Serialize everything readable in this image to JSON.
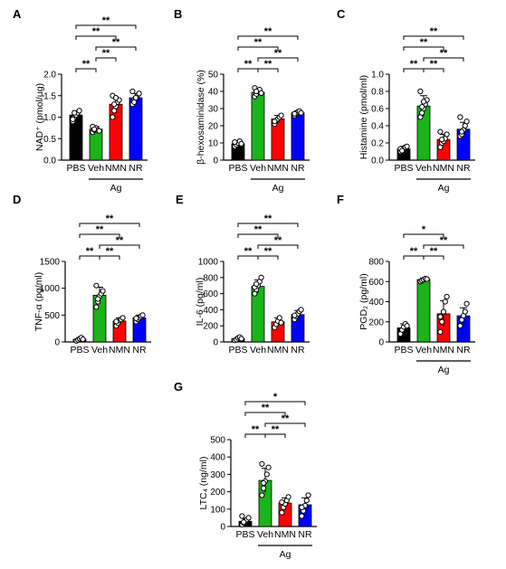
{
  "chart_data": [
    {
      "panel": "A",
      "type": "bar",
      "ylabel": "NAD⁺ (pmol/µg)",
      "ylim": [
        0,
        2.0
      ],
      "yticks": [
        "0.0",
        "0.5",
        "1.0",
        "1.5",
        "2.0"
      ],
      "ytick_values": [
        0,
        0.5,
        1.0,
        1.5,
        2.0
      ],
      "categories": [
        "PBS",
        "Veh",
        "NMN",
        "NR"
      ],
      "bar_colors": [
        "#000000",
        "#1ab31a",
        "#ff0000",
        "#0000ff"
      ],
      "values": [
        1.05,
        0.72,
        1.3,
        1.45
      ],
      "errors": [
        0.1,
        0.06,
        0.15,
        0.1
      ],
      "points": [
        [
          0.9,
          1.0,
          1.05,
          1.1,
          1.15,
          0.95,
          1.1
        ],
        [
          0.65,
          0.7,
          0.75,
          0.7,
          0.68,
          0.78,
          0.72
        ],
        [
          1.0,
          1.15,
          1.25,
          1.35,
          1.4,
          1.5,
          1.3,
          1.45
        ],
        [
          1.3,
          1.4,
          1.45,
          1.5,
          1.55,
          1.6,
          1.35,
          1.45
        ]
      ],
      "group_label": "Ag",
      "sig_brackets": [
        {
          "from": 0,
          "to": 1,
          "level": 1,
          "label": "**"
        },
        {
          "from": 1,
          "to": 2,
          "level": 2,
          "label": "**"
        },
        {
          "from": 1,
          "to": 3,
          "level": 3,
          "label": "**"
        },
        {
          "from": 0,
          "to": 2,
          "level": 4,
          "label": "**"
        },
        {
          "from": 0,
          "to": 3,
          "level": 5,
          "label": "**"
        }
      ]
    },
    {
      "panel": "B",
      "type": "bar",
      "ylabel": "β-hexosaminidase (%)",
      "ylim": [
        0,
        50
      ],
      "yticks": [
        "0",
        "10",
        "20",
        "30",
        "40",
        "50"
      ],
      "ytick_values": [
        0,
        10,
        20,
        30,
        40,
        50
      ],
      "categories": [
        "PBS",
        "Veh",
        "NMN",
        "NR"
      ],
      "bar_colors": [
        "#000000",
        "#1ab31a",
        "#ff0000",
        "#0000ff"
      ],
      "values": [
        9.5,
        39.5,
        24,
        27.5
      ],
      "errors": [
        1.2,
        1.5,
        2.0,
        1.2
      ],
      "points": [
        [
          8,
          9,
          10,
          11,
          9.5,
          10.5
        ],
        [
          37,
          38.5,
          40,
          41,
          39,
          42,
          40
        ],
        [
          21,
          23,
          24,
          25,
          26,
          22.5
        ],
        [
          26,
          27,
          28,
          28.5,
          27.5,
          27
        ]
      ],
      "group_label": "Ag",
      "sig_brackets": [
        {
          "from": 0,
          "to": 1,
          "level": 1,
          "label": "**"
        },
        {
          "from": 1,
          "to": 2,
          "level": 1,
          "label": "**"
        },
        {
          "from": 1,
          "to": 3,
          "level": 2,
          "label": "**"
        },
        {
          "from": 0,
          "to": 2,
          "level": 3,
          "label": "**"
        },
        {
          "from": 0,
          "to": 3,
          "level": 4,
          "label": "**"
        }
      ]
    },
    {
      "panel": "C",
      "type": "bar",
      "ylabel": "Histamine (pmol/ml)",
      "ylim": [
        0,
        1.0
      ],
      "yticks": [
        "0.0",
        "0.2",
        "0.4",
        "0.6",
        "0.8",
        "1.0"
      ],
      "ytick_values": [
        0,
        0.2,
        0.4,
        0.6,
        0.8,
        1.0
      ],
      "categories": [
        "PBS",
        "Veh",
        "NMN",
        "NR"
      ],
      "bar_colors": [
        "#000000",
        "#1ab31a",
        "#ff0000",
        "#0000ff"
      ],
      "values": [
        0.13,
        0.63,
        0.24,
        0.36
      ],
      "errors": [
        0.03,
        0.12,
        0.06,
        0.08
      ],
      "points": [
        [
          0.1,
          0.12,
          0.14,
          0.15,
          0.16,
          0.13,
          0.11
        ],
        [
          0.5,
          0.55,
          0.6,
          0.65,
          0.7,
          0.8,
          0.62,
          0.68
        ],
        [
          0.15,
          0.2,
          0.22,
          0.25,
          0.3,
          0.33,
          0.24
        ],
        [
          0.28,
          0.3,
          0.35,
          0.4,
          0.45,
          0.5,
          0.33
        ]
      ],
      "group_label": "Ag",
      "sig_brackets": [
        {
          "from": 0,
          "to": 1,
          "level": 1,
          "label": "**"
        },
        {
          "from": 1,
          "to": 2,
          "level": 1,
          "label": "**"
        },
        {
          "from": 1,
          "to": 3,
          "level": 2,
          "label": "**"
        },
        {
          "from": 0,
          "to": 2,
          "level": 3,
          "label": "**"
        },
        {
          "from": 0,
          "to": 3,
          "level": 4,
          "label": "**"
        }
      ]
    },
    {
      "panel": "D",
      "type": "bar",
      "ylabel": "TNF-α (pg/ml)",
      "ylim": [
        0,
        1500
      ],
      "yticks": [
        "0",
        "500",
        "1000",
        "1500"
      ],
      "ytick_values": [
        0,
        500,
        1000,
        1500
      ],
      "categories": [
        "PBS",
        "Veh",
        "NMN",
        "NR"
      ],
      "bar_colors": [
        "#000000",
        "#1ab31a",
        "#ff0000",
        "#0000ff"
      ],
      "values": [
        50,
        870,
        390,
        450
      ],
      "errors": [
        20,
        150,
        60,
        50
      ],
      "points": [
        [
          20,
          40,
          60,
          80,
          50
        ],
        [
          650,
          750,
          850,
          900,
          950,
          1050,
          800
        ],
        [
          300,
          350,
          400,
          420,
          450,
          380
        ],
        [
          380,
          420,
          450,
          480,
          500,
          440
        ]
      ],
      "group_label": "",
      "sig_brackets": [
        {
          "from": 0,
          "to": 1,
          "level": 1,
          "label": "**"
        },
        {
          "from": 1,
          "to": 2,
          "level": 1,
          "label": "**"
        },
        {
          "from": 1,
          "to": 3,
          "level": 2,
          "label": "**"
        },
        {
          "from": 0,
          "to": 2,
          "level": 3,
          "label": "**"
        },
        {
          "from": 0,
          "to": 3,
          "level": 4,
          "label": "**"
        }
      ]
    },
    {
      "panel": "E",
      "type": "bar",
      "ylabel": "IL-6 (pg/ml)",
      "ylim": [
        0,
        1000
      ],
      "yticks": [
        "0",
        "200",
        "400",
        "600",
        "800",
        "1000"
      ],
      "ytick_values": [
        0,
        200,
        400,
        600,
        800,
        1000
      ],
      "categories": [
        "PBS",
        "Veh",
        "NMN",
        "NR"
      ],
      "bar_colors": [
        "#000000",
        "#1ab31a",
        "#ff0000",
        "#0000ff"
      ],
      "values": [
        40,
        690,
        250,
        340
      ],
      "errors": [
        15,
        80,
        50,
        50
      ],
      "points": [
        [
          20,
          30,
          50,
          60,
          40
        ],
        [
          600,
          650,
          700,
          750,
          800,
          680,
          720
        ],
        [
          180,
          220,
          260,
          300,
          240
        ],
        [
          280,
          320,
          350,
          380,
          400,
          330
        ]
      ],
      "group_label": "",
      "sig_brackets": [
        {
          "from": 0,
          "to": 1,
          "level": 1,
          "label": "**"
        },
        {
          "from": 1,
          "to": 2,
          "level": 1,
          "label": "**"
        },
        {
          "from": 1,
          "to": 3,
          "level": 2,
          "label": "**"
        },
        {
          "from": 0,
          "to": 2,
          "level": 3,
          "label": "**"
        },
        {
          "from": 0,
          "to": 3,
          "level": 4,
          "label": "**"
        }
      ]
    },
    {
      "panel": "F",
      "type": "bar",
      "ylabel": "PGD₂ (pg/ml)",
      "ylim": [
        0,
        800
      ],
      "yticks": [
        "0",
        "200",
        "400",
        "600",
        "800"
      ],
      "ytick_values": [
        0,
        200,
        400,
        600,
        800
      ],
      "categories": [
        "PBS",
        "Veh",
        "NMN",
        "NR"
      ],
      "bar_colors": [
        "#000000",
        "#1ab31a",
        "#ff0000",
        "#0000ff"
      ],
      "values": [
        140,
        620,
        280,
        260
      ],
      "errors": [
        40,
        15,
        130,
        80
      ],
      "points": [
        [
          80,
          120,
          150,
          180,
          160
        ],
        [
          600,
          610,
          620,
          630,
          625
        ],
        [
          100,
          200,
          300,
          400,
          450,
          250
        ],
        [
          160,
          220,
          260,
          300,
          380
        ]
      ],
      "group_label": "Ag",
      "sig_brackets": [
        {
          "from": 0,
          "to": 1,
          "level": 1,
          "label": "**"
        },
        {
          "from": 1,
          "to": 2,
          "level": 1,
          "label": "**"
        },
        {
          "from": 1,
          "to": 3,
          "level": 2,
          "label": "**"
        },
        {
          "from": 0,
          "to": 2,
          "level": 3,
          "label": "*"
        }
      ]
    },
    {
      "panel": "G",
      "type": "bar",
      "ylabel": "LTC₄ (ng/ml)",
      "ylim": [
        0,
        500
      ],
      "yticks": [
        "0",
        "100",
        "200",
        "300",
        "400",
        "500"
      ],
      "ytick_values": [
        0,
        100,
        200,
        300,
        400,
        500
      ],
      "categories": [
        "PBS",
        "Veh",
        "NMN",
        "NR"
      ],
      "bar_colors": [
        "#000000",
        "#1ab31a",
        "#ff0000",
        "#0000ff"
      ],
      "values": [
        30,
        265,
        135,
        125
      ],
      "errors": [
        15,
        70,
        30,
        40
      ],
      "points": [
        [
          10,
          20,
          30,
          40,
          50,
          60,
          25
        ],
        [
          180,
          220,
          260,
          300,
          340,
          360,
          250
        ],
        [
          80,
          110,
          130,
          150,
          170,
          140
        ],
        [
          60,
          90,
          120,
          150,
          180,
          110
        ]
      ],
      "group_label": "Ag",
      "sig_brackets": [
        {
          "from": 0,
          "to": 1,
          "level": 1,
          "label": "**"
        },
        {
          "from": 1,
          "to": 2,
          "level": 1,
          "label": "**"
        },
        {
          "from": 1,
          "to": 3,
          "level": 2,
          "label": "**"
        },
        {
          "from": 0,
          "to": 2,
          "level": 3,
          "label": "**"
        },
        {
          "from": 0,
          "to": 3,
          "level": 4,
          "label": "*"
        }
      ]
    }
  ]
}
